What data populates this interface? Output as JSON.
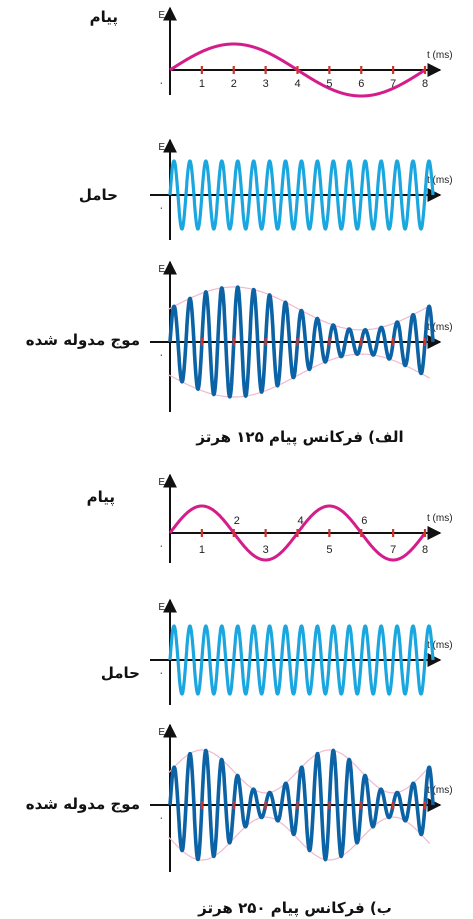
{
  "axis": {
    "x_label": "t (ms)",
    "y_label": "E",
    "origin": "۰"
  },
  "colors": {
    "message": "#d41d8a",
    "carrier": "#1aa6df",
    "modulated": "#0b62a4",
    "envelope": "#f0b8cf",
    "axis": "#111111",
    "tick": "#d0332b"
  },
  "row_labels": {
    "message": "پیام",
    "carrier": "حامل",
    "modulated": "موج مدوله شده"
  },
  "captions": {
    "a": "الف) فرکانس پیام ۱۲۵ هرتز",
    "b": "ب) فرکانس پیام ۲۵۰ هرتز"
  },
  "panels": [
    {
      "message_freq_hz": 125,
      "carrier_freq_hz": 2000,
      "t_range_ms": [
        0,
        8
      ],
      "tick_labels": [
        "1",
        "2",
        "3",
        "4",
        "5",
        "6",
        "7",
        "8"
      ]
    },
    {
      "message_freq_hz": 250,
      "carrier_freq_hz": 2000,
      "t_range_ms": [
        0,
        8
      ],
      "tick_labels": [
        "1",
        "2",
        "3",
        "4",
        "5",
        "6",
        "7",
        "8"
      ]
    }
  ]
}
